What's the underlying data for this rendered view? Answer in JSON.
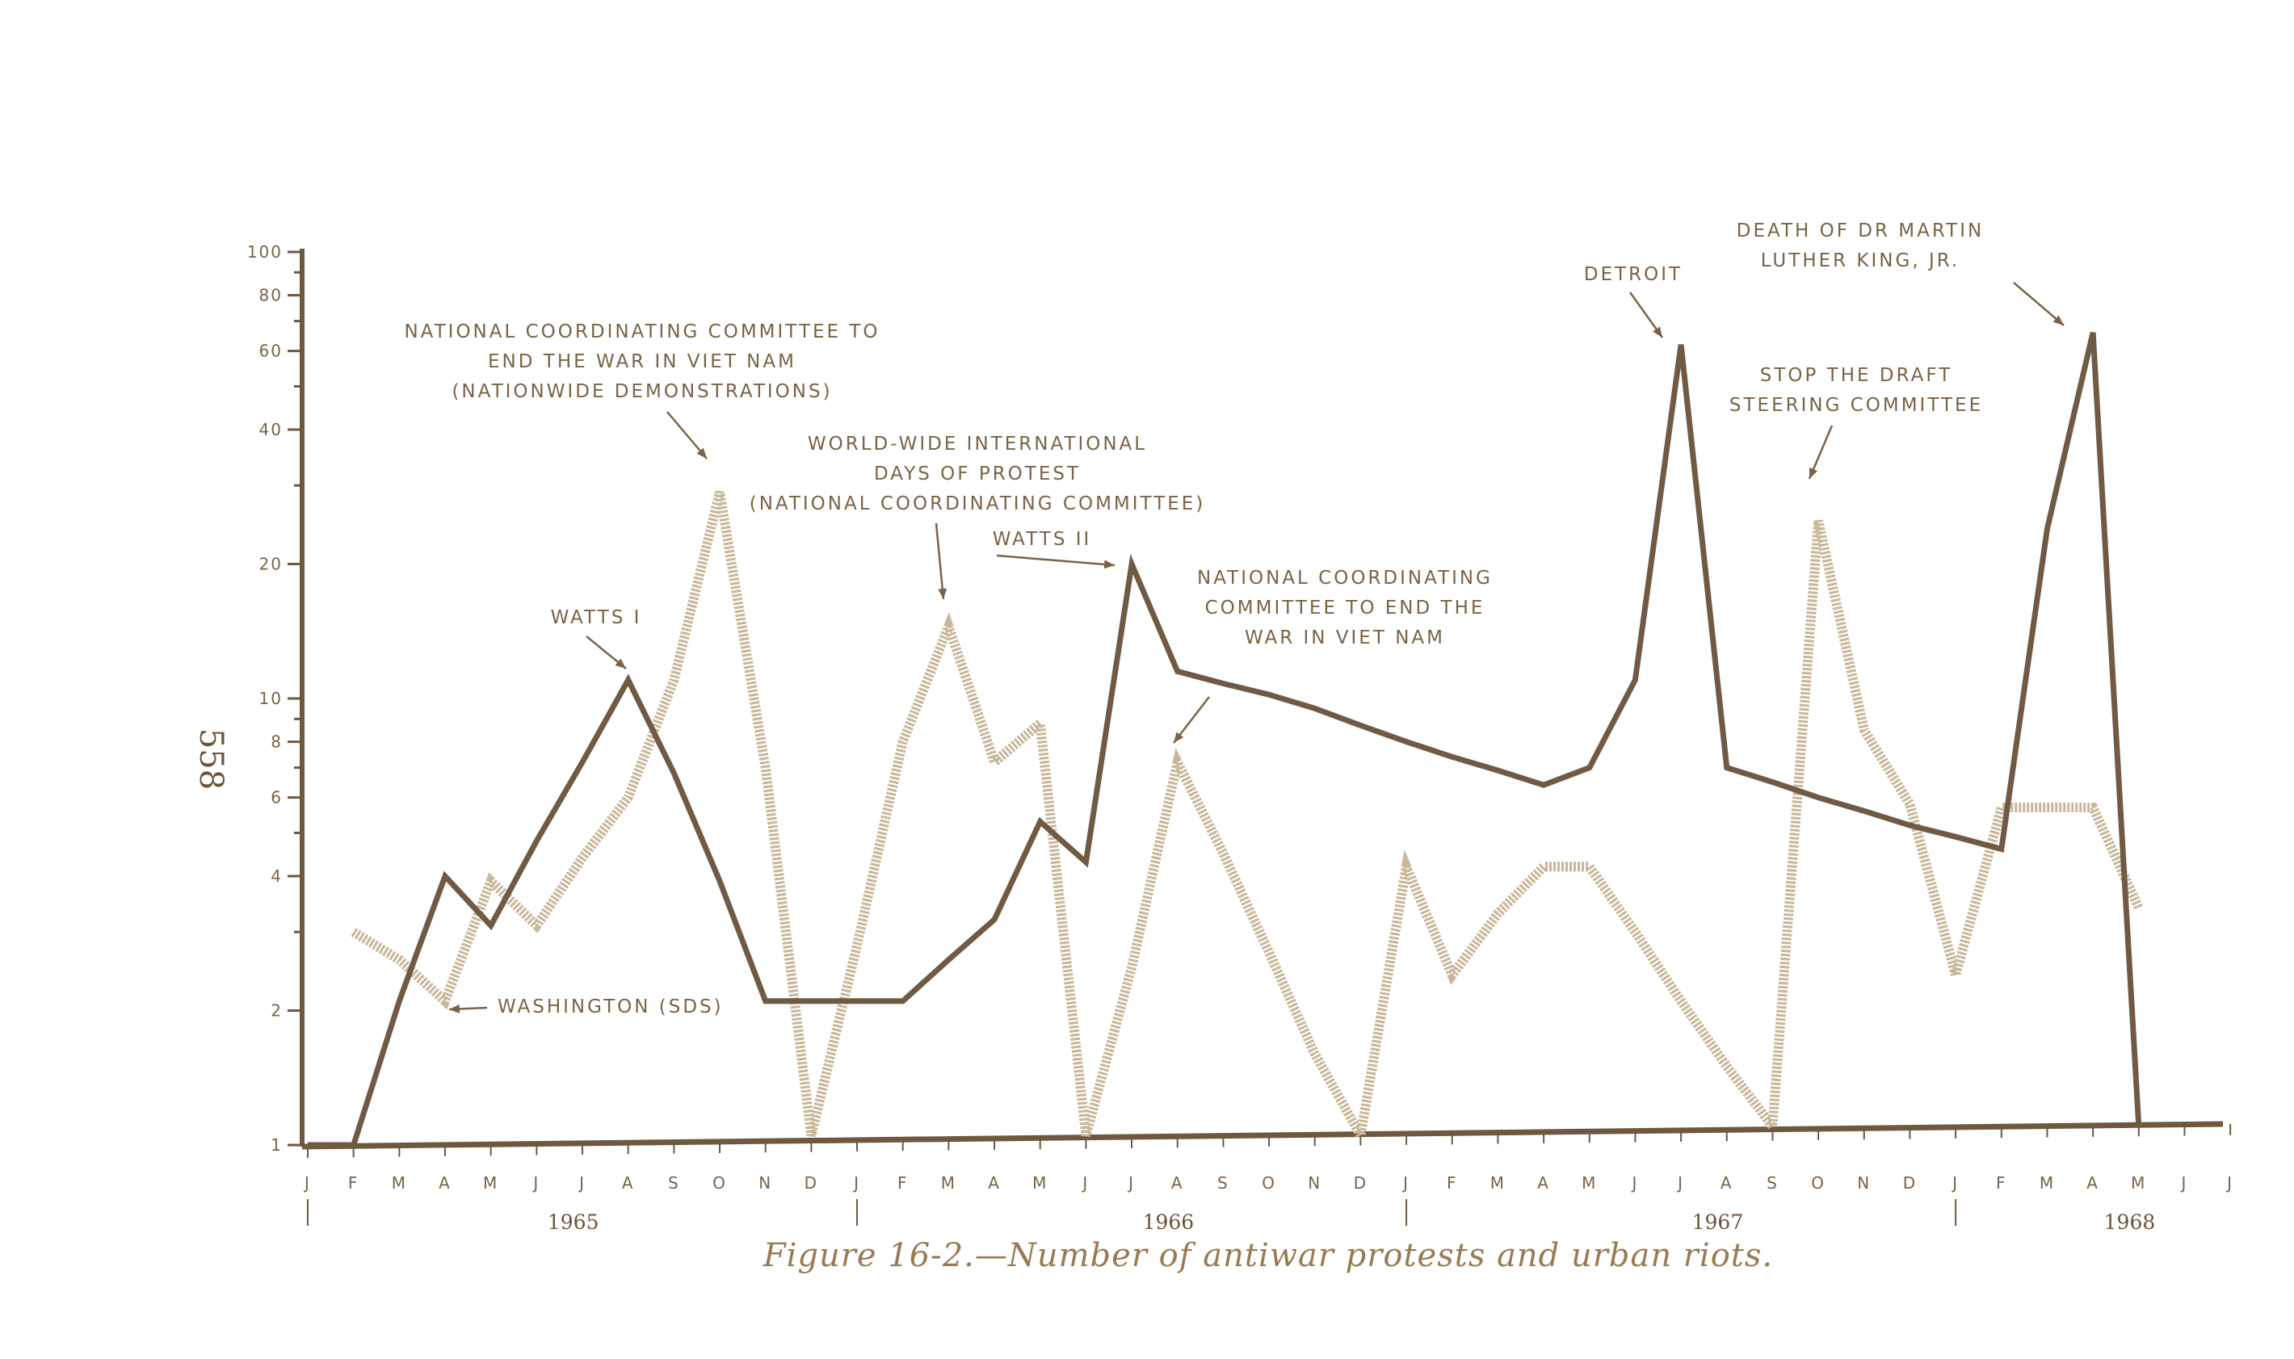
{
  "page_number": "558",
  "caption": "Figure 16-2.—Number of antiwar protests and urban riots.",
  "colors": {
    "riots": "#705a44",
    "protests": "#c8b79a",
    "axis": "#6e5840",
    "text": "#7a6347"
  },
  "chart_data": {
    "type": "line",
    "title": "Figure 16-2.—Number of antiwar protests and urban riots.",
    "y_scale": "log",
    "ylim": [
      1,
      100
    ],
    "y_ticks": [
      "1",
      "2",
      "4",
      "6",
      "8",
      "10",
      "20",
      "40",
      "60",
      "80",
      "100"
    ],
    "x_month_labels": [
      "J",
      "F",
      "M",
      "A",
      "M",
      "J",
      "J",
      "A",
      "S",
      "O",
      "N",
      "D",
      "J",
      "F",
      "M",
      "A",
      "M",
      "J",
      "J",
      "A",
      "S",
      "O",
      "N",
      "D",
      "J",
      "F",
      "M",
      "A",
      "M",
      "J",
      "J",
      "A",
      "S",
      "O",
      "N",
      "D",
      "J",
      "F",
      "M",
      "A",
      "M",
      "J",
      "J"
    ],
    "years": [
      "1965",
      "1966",
      "1967",
      "1968"
    ],
    "series": [
      {
        "key": "riots",
        "values": [
          1,
          1,
          2.1,
          4,
          3.1,
          4.8,
          7.2,
          11,
          6.8,
          3.9,
          2.1,
          2.1,
          2.1,
          2.1,
          2.6,
          3.2,
          5.3,
          4.3,
          20,
          11.5,
          10.8,
          10.2,
          9.5,
          8.7,
          8.0,
          7.4,
          6.9,
          6.4,
          7.0,
          11,
          62,
          7.0,
          6.5,
          6.0,
          5.6,
          5.2,
          4.9,
          4.6,
          24,
          66,
          1.1,
          null,
          null
        ]
      },
      {
        "key": "protests",
        "values": [
          null,
          3.0,
          2.6,
          2.1,
          3.9,
          3.1,
          4.4,
          6.0,
          11,
          29,
          7.0,
          1.05,
          2.8,
          8,
          14.5,
          7.2,
          8.8,
          1.05,
          2.5,
          7.2,
          4.5,
          2.7,
          1.6,
          1.05,
          4.2,
          2.4,
          3.3,
          4.2,
          4.2,
          3.0,
          2.1,
          1.5,
          1.1,
          25,
          8.5,
          5.8,
          2.4,
          5.7,
          5.7,
          5.7,
          3.4,
          null,
          null
        ]
      }
    ],
    "annotations": [
      {
        "lines": [
          "NATIONAL COORDINATING COMMITTEE TO",
          "END THE WAR IN VIET NAM",
          "(NATIONWIDE DEMONSTRATIONS)"
        ]
      },
      {
        "lines": [
          "WORLD-WIDE INTERNATIONAL",
          "DAYS OF PROTEST",
          "(NATIONAL COORDINATING COMMITTEE)"
        ]
      },
      {
        "lines": [
          "WATTS I"
        ]
      },
      {
        "lines": [
          "WATTS II"
        ]
      },
      {
        "lines": [
          "NATIONAL COORDINATING",
          "COMMITTEE TO END THE",
          "WAR IN VIET NAM"
        ]
      },
      {
        "lines": [
          "WASHINGTON (SDS)"
        ]
      },
      {
        "lines": [
          "DETROIT"
        ]
      },
      {
        "lines": [
          "DEATH OF DR  MARTIN",
          "LUTHER KING, JR."
        ]
      },
      {
        "lines": [
          "STOP THE DRAFT",
          "STEERING COMMITTEE"
        ]
      }
    ]
  }
}
